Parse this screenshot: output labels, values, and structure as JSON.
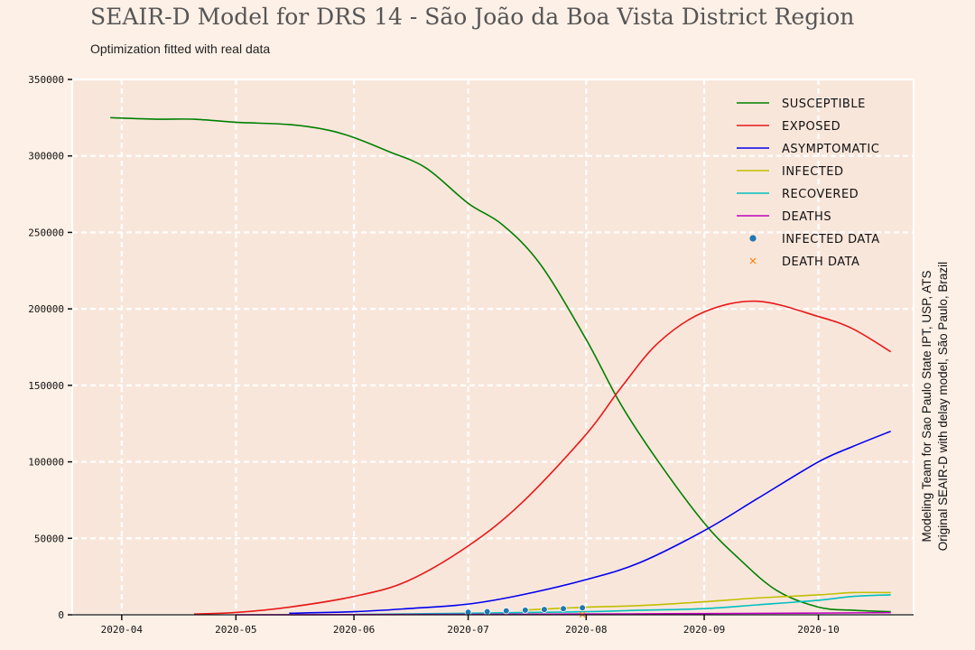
{
  "header": {
    "title": "SEAIR-D Model for DRS 14 - São João da Boa Vista District Region",
    "subtitle": "Optimization fitted with real data"
  },
  "side_credit": {
    "line1": "Modeling Team for Sao Paulo State IPT, USP, ATS",
    "line2": "Original SEAIR-D with delay model, São Paulo, Brazil"
  },
  "colors": {
    "page_background": "#fdf0e6",
    "plot_background": "#f9e6db",
    "grid": "#ffffff"
  },
  "chart_data": {
    "type": "line",
    "title": "SEAIR-D Model for DRS 14 - São João da Boa Vista District Region",
    "xlabel": "",
    "ylabel": "",
    "x_tick_labels": [
      "2020-04",
      "2020-05",
      "2020-06",
      "2020-07",
      "2020-08",
      "2020-09",
      "2020-10"
    ],
    "y_tick_labels": [
      "0",
      "50000",
      "100000",
      "150000",
      "200000",
      "250000",
      "300000",
      "350000"
    ],
    "xlim": [
      "2020-03-19",
      "2020-10-26"
    ],
    "ylim": [
      0,
      350000
    ],
    "grid": true,
    "legend_position": "top-right",
    "series": [
      {
        "name": "Susceptible",
        "color": "#008000",
        "style": "line",
        "x": [
          "2020-03-29",
          "2020-04-10",
          "2020-04-20",
          "2020-05-01",
          "2020-05-15",
          "2020-05-25",
          "2020-06-01",
          "2020-06-10",
          "2020-06-20",
          "2020-07-01",
          "2020-07-10",
          "2020-07-20",
          "2020-08-01",
          "2020-08-10",
          "2020-08-20",
          "2020-09-01",
          "2020-09-10",
          "2020-09-20",
          "2020-10-01",
          "2020-10-10",
          "2020-10-20"
        ],
        "values": [
          325000,
          324000,
          324000,
          322000,
          320500,
          317000,
          312000,
          303000,
          292000,
          269000,
          255000,
          229000,
          180000,
          138000,
          100000,
          60000,
          37000,
          16000,
          5000,
          3000,
          2000
        ]
      },
      {
        "name": "Exposed",
        "color": "#e81818",
        "style": "line",
        "x": [
          "2020-04-20",
          "2020-05-01",
          "2020-05-15",
          "2020-06-01",
          "2020-06-15",
          "2020-07-01",
          "2020-07-15",
          "2020-08-01",
          "2020-08-10",
          "2020-08-20",
          "2020-09-01",
          "2020-09-15",
          "2020-10-01",
          "2020-10-10",
          "2020-10-20"
        ],
        "values": [
          500,
          1500,
          5000,
          12000,
          22000,
          45000,
          73000,
          118000,
          148000,
          178000,
          198000,
          205000,
          195000,
          187000,
          172000
        ]
      },
      {
        "name": "Asymptomatic",
        "color": "#0000ee",
        "style": "line",
        "x": [
          "2020-05-15",
          "2020-06-01",
          "2020-06-15",
          "2020-07-01",
          "2020-07-15",
          "2020-08-01",
          "2020-08-15",
          "2020-09-01",
          "2020-09-15",
          "2020-10-01",
          "2020-10-10",
          "2020-10-20"
        ],
        "values": [
          1000,
          2000,
          4000,
          7000,
          13000,
          23000,
          34000,
          55000,
          76000,
          100000,
          110000,
          120000
        ]
      },
      {
        "name": "Infected",
        "color": "#bfbf00",
        "style": "line",
        "x": [
          "2020-07-15",
          "2020-08-01",
          "2020-08-15",
          "2020-09-01",
          "2020-09-15",
          "2020-10-01",
          "2020-10-10",
          "2020-10-20"
        ],
        "values": [
          3000,
          5000,
          6000,
          8500,
          11000,
          13000,
          14500,
          14500
        ]
      },
      {
        "name": "Recovered",
        "color": "#00bfbf",
        "style": "line",
        "x": [
          "2020-06-01",
          "2020-07-01",
          "2020-08-01",
          "2020-08-15",
          "2020-09-01",
          "2020-09-15",
          "2020-10-01",
          "2020-10-10",
          "2020-10-20"
        ],
        "values": [
          200,
          1000,
          2000,
          3000,
          4000,
          6500,
          9500,
          12000,
          13000
        ]
      },
      {
        "name": "Deaths",
        "color": "#bf00bf",
        "style": "line",
        "x": [
          "2020-05-01",
          "2020-06-01",
          "2020-07-01",
          "2020-08-01",
          "2020-09-01",
          "2020-10-01",
          "2020-10-20"
        ],
        "values": [
          0,
          100,
          300,
          500,
          800,
          1100,
          1400
        ]
      },
      {
        "name": "Infected data",
        "color": "#1f77b4",
        "style": "dots",
        "x": [
          "2020-07-01",
          "2020-07-06",
          "2020-07-11",
          "2020-07-16",
          "2020-07-21",
          "2020-07-26",
          "2020-07-31"
        ],
        "values": [
          1700,
          2100,
          2600,
          3000,
          3500,
          4000,
          4600
        ]
      },
      {
        "name": "Death data",
        "color": "#ff7f0e",
        "style": "x",
        "x": [
          "2020-07-31"
        ],
        "values": [
          150
        ]
      }
    ]
  }
}
